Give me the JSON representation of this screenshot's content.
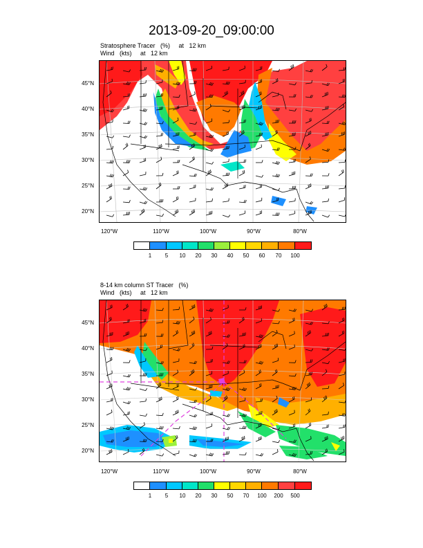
{
  "title": "2013-09-20_09:00:00",
  "colors": {
    "white": "#ffffff",
    "blue1": "#1e90ff",
    "blue2": "#00c8ff",
    "cyan": "#00e6c8",
    "green": "#22e06a",
    "lime": "#9bf03c",
    "yellow": "#ffff00",
    "gold": "#ffd700",
    "orange": "#ffb000",
    "darkorange": "#ff7a00",
    "red": "#ff4040",
    "crimson": "#ff1a1a",
    "magenta": "#e040e0"
  },
  "panels": [
    {
      "subtitle_line1": "Stratosphere Tracer   (%)     at   12 km",
      "subtitle_line2": "Wind   (kts)     at   12 km",
      "lat_labels": [
        "45°N",
        "40°N",
        "35°N",
        "30°N",
        "25°N",
        "20°N"
      ],
      "lon_labels": [
        "120°W",
        "110°W",
        "100°W",
        "90°W",
        "80°W"
      ],
      "colorbar_labels": [
        "1",
        "5",
        "10",
        "20",
        "30",
        "40",
        "50",
        "60",
        "70",
        "100"
      ]
    },
    {
      "subtitle_line1": "8-14 km column ST Tracer   (%)",
      "subtitle_line2": "Wind   (kts)     at   12 km",
      "lat_labels": [
        "45°N",
        "40°N",
        "35°N",
        "30°N",
        "25°N",
        "20°N"
      ],
      "lon_labels": [
        "120°W",
        "110°W",
        "100°W",
        "90°W",
        "80°W"
      ],
      "colorbar_labels": [
        "1",
        "5",
        "10",
        "20",
        "30",
        "50",
        "70",
        "100",
        "200",
        "500"
      ]
    }
  ]
}
